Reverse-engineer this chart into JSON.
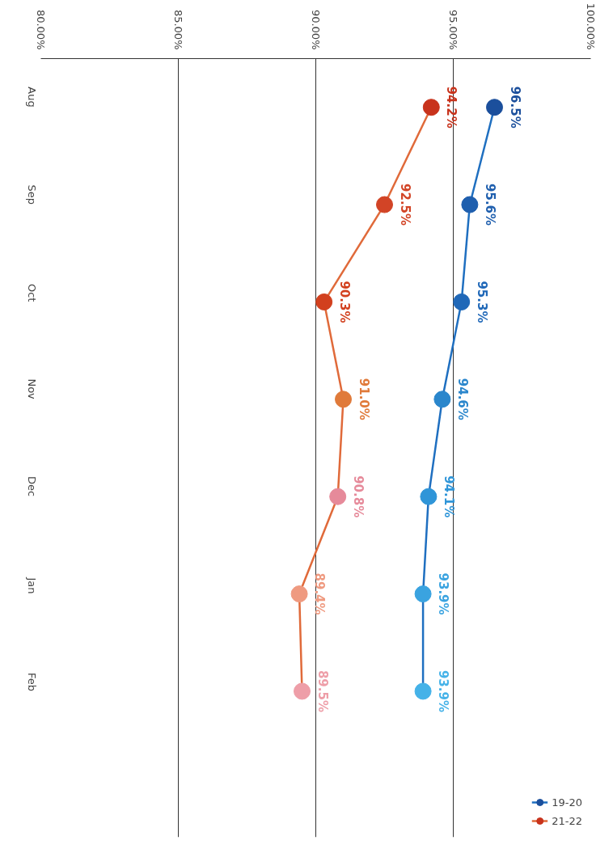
{
  "chart_data": {
    "type": "line",
    "categories": [
      "Aug",
      "Sep",
      "Oct",
      "Nov",
      "Dec",
      "Jan",
      "Feb"
    ],
    "series": [
      {
        "name": "19-20",
        "color": "#1f6fc0",
        "colors": [
          "#1b4f9c",
          "#1f5fae",
          "#2068b8",
          "#2a86cc",
          "#2f95d8",
          "#3aa3e0",
          "#45b2e8"
        ],
        "values": [
          96.5,
          95.6,
          95.3,
          94.6,
          94.1,
          93.9,
          93.9
        ],
        "value_labels": [
          "96.5%",
          "95.6%",
          "95.3%",
          "94.6%",
          "94.1%",
          "93.9%",
          "93.9%"
        ]
      },
      {
        "name": "21-22",
        "color": "#e06a3a",
        "colors": [
          "#c8331c",
          "#d24426",
          "#d2401e",
          "#e07a3a",
          "#e68a9a",
          "#ef9a80",
          "#ee9ea8"
        ],
        "values": [
          94.2,
          92.5,
          90.3,
          91.0,
          90.8,
          89.4,
          89.5
        ],
        "value_labels": [
          "94.2%",
          "92.5%",
          "90.3%",
          "91.0%",
          "90.8%",
          "89.4%",
          "89.5%"
        ]
      }
    ],
    "orientation": "horizontal",
    "xlim": [
      80,
      100
    ],
    "xticks": [
      {
        "value": 80,
        "label": "80.00%"
      },
      {
        "value": 85,
        "label": "85.00%"
      },
      {
        "value": 90,
        "label": "90.00%"
      },
      {
        "value": 95,
        "label": "95.00%"
      },
      {
        "value": 100,
        "label": "100.00%"
      }
    ],
    "grid": "x",
    "legend": "bottom right",
    "marker": "circle",
    "line_style": "solid"
  }
}
